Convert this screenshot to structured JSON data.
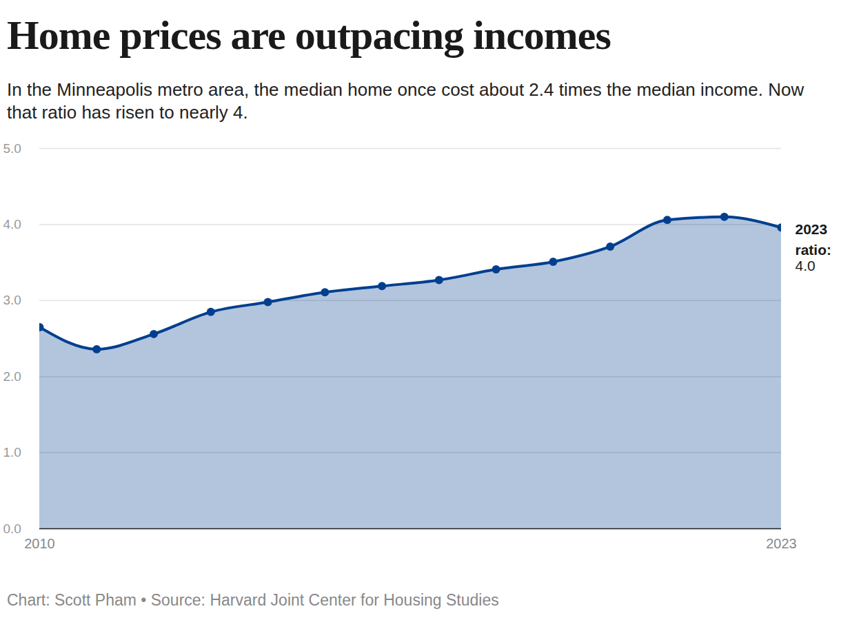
{
  "chart_data": {
    "type": "area",
    "title": "Home prices are outpacing incomes",
    "subtitle": "In the Minneapolis metro area, the median home once cost about 2.4 times the median income. Now that ratio has risen to nearly 4.",
    "caption": "Chart: Scott Pham • Source: Harvard Joint Center for Housing Studies",
    "x": [
      2010,
      2011,
      2012,
      2013,
      2014,
      2015,
      2016,
      2017,
      2018,
      2019,
      2020,
      2021,
      2022,
      2023
    ],
    "values": [
      2.65,
      2.36,
      2.56,
      2.85,
      2.98,
      3.11,
      3.19,
      3.27,
      3.41,
      3.51,
      3.71,
      4.06,
      4.1,
      3.96
    ],
    "color": "#003f8f",
    "marker": "circle",
    "xlim": [
      2010,
      2023
    ],
    "xticks": [
      2010,
      2023
    ],
    "ylim": [
      0,
      5
    ],
    "yticks": [
      0,
      1,
      2,
      3,
      4,
      5
    ],
    "grid": true,
    "annotation": {
      "label": "2023 ratio:",
      "value": "4.0"
    }
  }
}
